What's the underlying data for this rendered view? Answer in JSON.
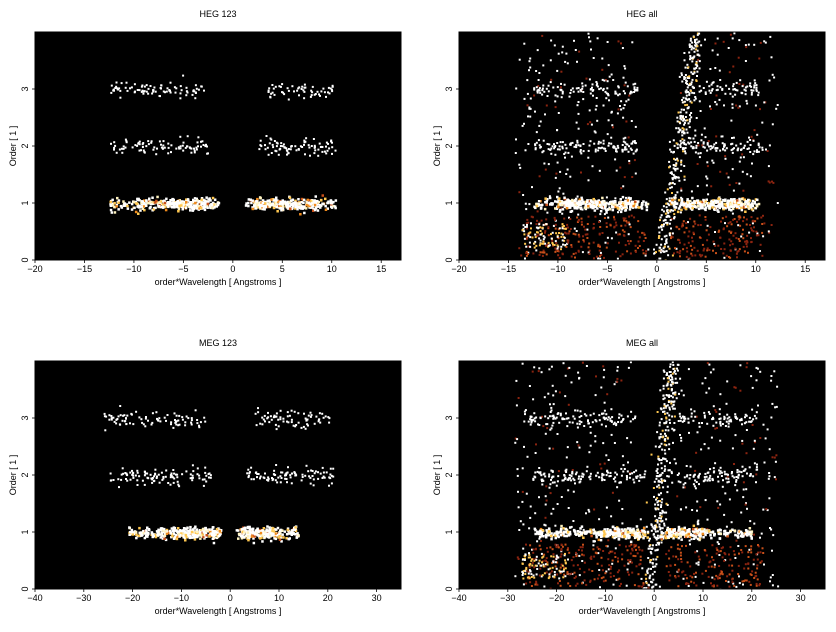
{
  "figure": {
    "background": "#ffffff",
    "plot_background": "#000000",
    "event_colors": [
      "#ffffff",
      "#fff3c0",
      "#ffc850",
      "#f08a1c",
      "#c8501a",
      "#8c2410"
    ]
  },
  "chart_data": [
    {
      "type": "scatter",
      "title": "HEG 123",
      "xlabel": "order*Wavelength [ Angstroms ]",
      "ylabel": "Order [ 1 ]",
      "xlim": [
        -20,
        17
      ],
      "ylim": [
        0,
        4
      ],
      "xticks": [
        -20,
        -15,
        -10,
        -5,
        0,
        5,
        10,
        15
      ],
      "yticks": [
        0,
        1,
        2,
        3
      ],
      "grid": false,
      "series": [
        {
          "order": 1,
          "x_range": [
            -12.5,
            10.3
          ],
          "gap": [
            -1.5,
            1.2
          ],
          "dense_x": [
            [
              -10,
              -2
            ],
            [
              2,
              8.5
            ]
          ],
          "y_spread": 0.05
        },
        {
          "order": 2,
          "x_range": [
            -12.5,
            10.3
          ],
          "gap": [
            -2.5,
            2.5
          ],
          "dense_x": [],
          "y_spread": 0.07
        },
        {
          "order": 3,
          "x_range": [
            -12.5,
            10.3
          ],
          "gap": [
            -3,
            3.5
          ],
          "dense_x": [],
          "y_spread": 0.07
        }
      ]
    },
    {
      "type": "scatter",
      "title": "HEG all",
      "xlabel": "order*Wavelength [ Angstroms ]",
      "ylabel": "Order [ 1 ]",
      "xlim": [
        -20,
        17
      ],
      "ylim": [
        0,
        4
      ],
      "xticks": [
        -20,
        -15,
        -10,
        -5,
        0,
        5,
        10,
        15
      ],
      "yticks": [
        0,
        1,
        2,
        3
      ],
      "grid": false,
      "series": [
        {
          "order": 1,
          "x_range": [
            -12.5,
            10.3
          ],
          "gap": [
            -1,
            1.2
          ],
          "dense_x": [
            [
              -10,
              -2
            ],
            [
              2,
              9.5
            ]
          ],
          "y_spread": 0.05
        },
        {
          "order": 2,
          "x_range": [
            -12.5,
            10.3
          ],
          "gap": [
            -2,
            2.5
          ],
          "dense_x": [],
          "y_spread": 0.07
        },
        {
          "order": 3,
          "x_range": [
            -12.5,
            10.3
          ],
          "gap": [
            -2,
            3.5
          ],
          "dense_x": [],
          "y_spread": 0.07
        }
      ],
      "background_streak": {
        "x_at_y0": 0.3,
        "x_at_ytop": 4.0
      },
      "background_scatter": true
    },
    {
      "type": "scatter",
      "title": "MEG 123",
      "xlabel": "order*Wavelength [ Angstroms ]",
      "ylabel": "Order [ 1 ]",
      "xlim": [
        -40,
        35
      ],
      "ylim": [
        0,
        4
      ],
      "xticks": [
        -40,
        -30,
        -20,
        -10,
        0,
        10,
        20,
        30
      ],
      "yticks": [
        0,
        1,
        2,
        3
      ],
      "grid": false,
      "series": [
        {
          "order": 1,
          "x_range": [
            -21,
            14
          ],
          "gap": [
            -2,
            1
          ],
          "dense_x": [
            [
              -12,
              -2
            ],
            [
              2,
              9
            ]
          ],
          "y_spread": 0.05
        },
        {
          "order": 2,
          "x_range": [
            -25,
            21
          ],
          "gap": [
            -4,
            3
          ],
          "dense_x": [],
          "y_spread": 0.07
        },
        {
          "order": 3,
          "x_range": [
            -26,
            21
          ],
          "gap": [
            -5,
            5
          ],
          "dense_x": [],
          "y_spread": 0.08
        }
      ]
    },
    {
      "type": "scatter",
      "title": "MEG all",
      "xlabel": "order*Wavelength [ Angstroms ]",
      "ylabel": "Order [ 1 ]",
      "xlim": [
        -40,
        35
      ],
      "ylim": [
        0,
        4
      ],
      "xticks": [
        -40,
        -30,
        -20,
        -10,
        0,
        10,
        20,
        30
      ],
      "yticks": [
        0,
        1,
        2,
        3
      ],
      "grid": false,
      "series": [
        {
          "order": 1,
          "x_range": [
            -25,
            20
          ],
          "gap": [
            -1.5,
            1
          ],
          "dense_x": [
            [
              -12,
              -2
            ],
            [
              2,
              10
            ]
          ],
          "y_spread": 0.05
        },
        {
          "order": 2,
          "x_range": [
            -25,
            21
          ],
          "gap": [
            -2,
            3
          ],
          "dense_x": [],
          "y_spread": 0.07
        },
        {
          "order": 3,
          "x_range": [
            -26,
            21
          ],
          "gap": [
            -2,
            5
          ],
          "dense_x": [],
          "y_spread": 0.07
        }
      ],
      "background_streak": {
        "x_at_y0": -1.0,
        "x_at_ytop": 3.5
      },
      "background_scatter": true
    }
  ]
}
